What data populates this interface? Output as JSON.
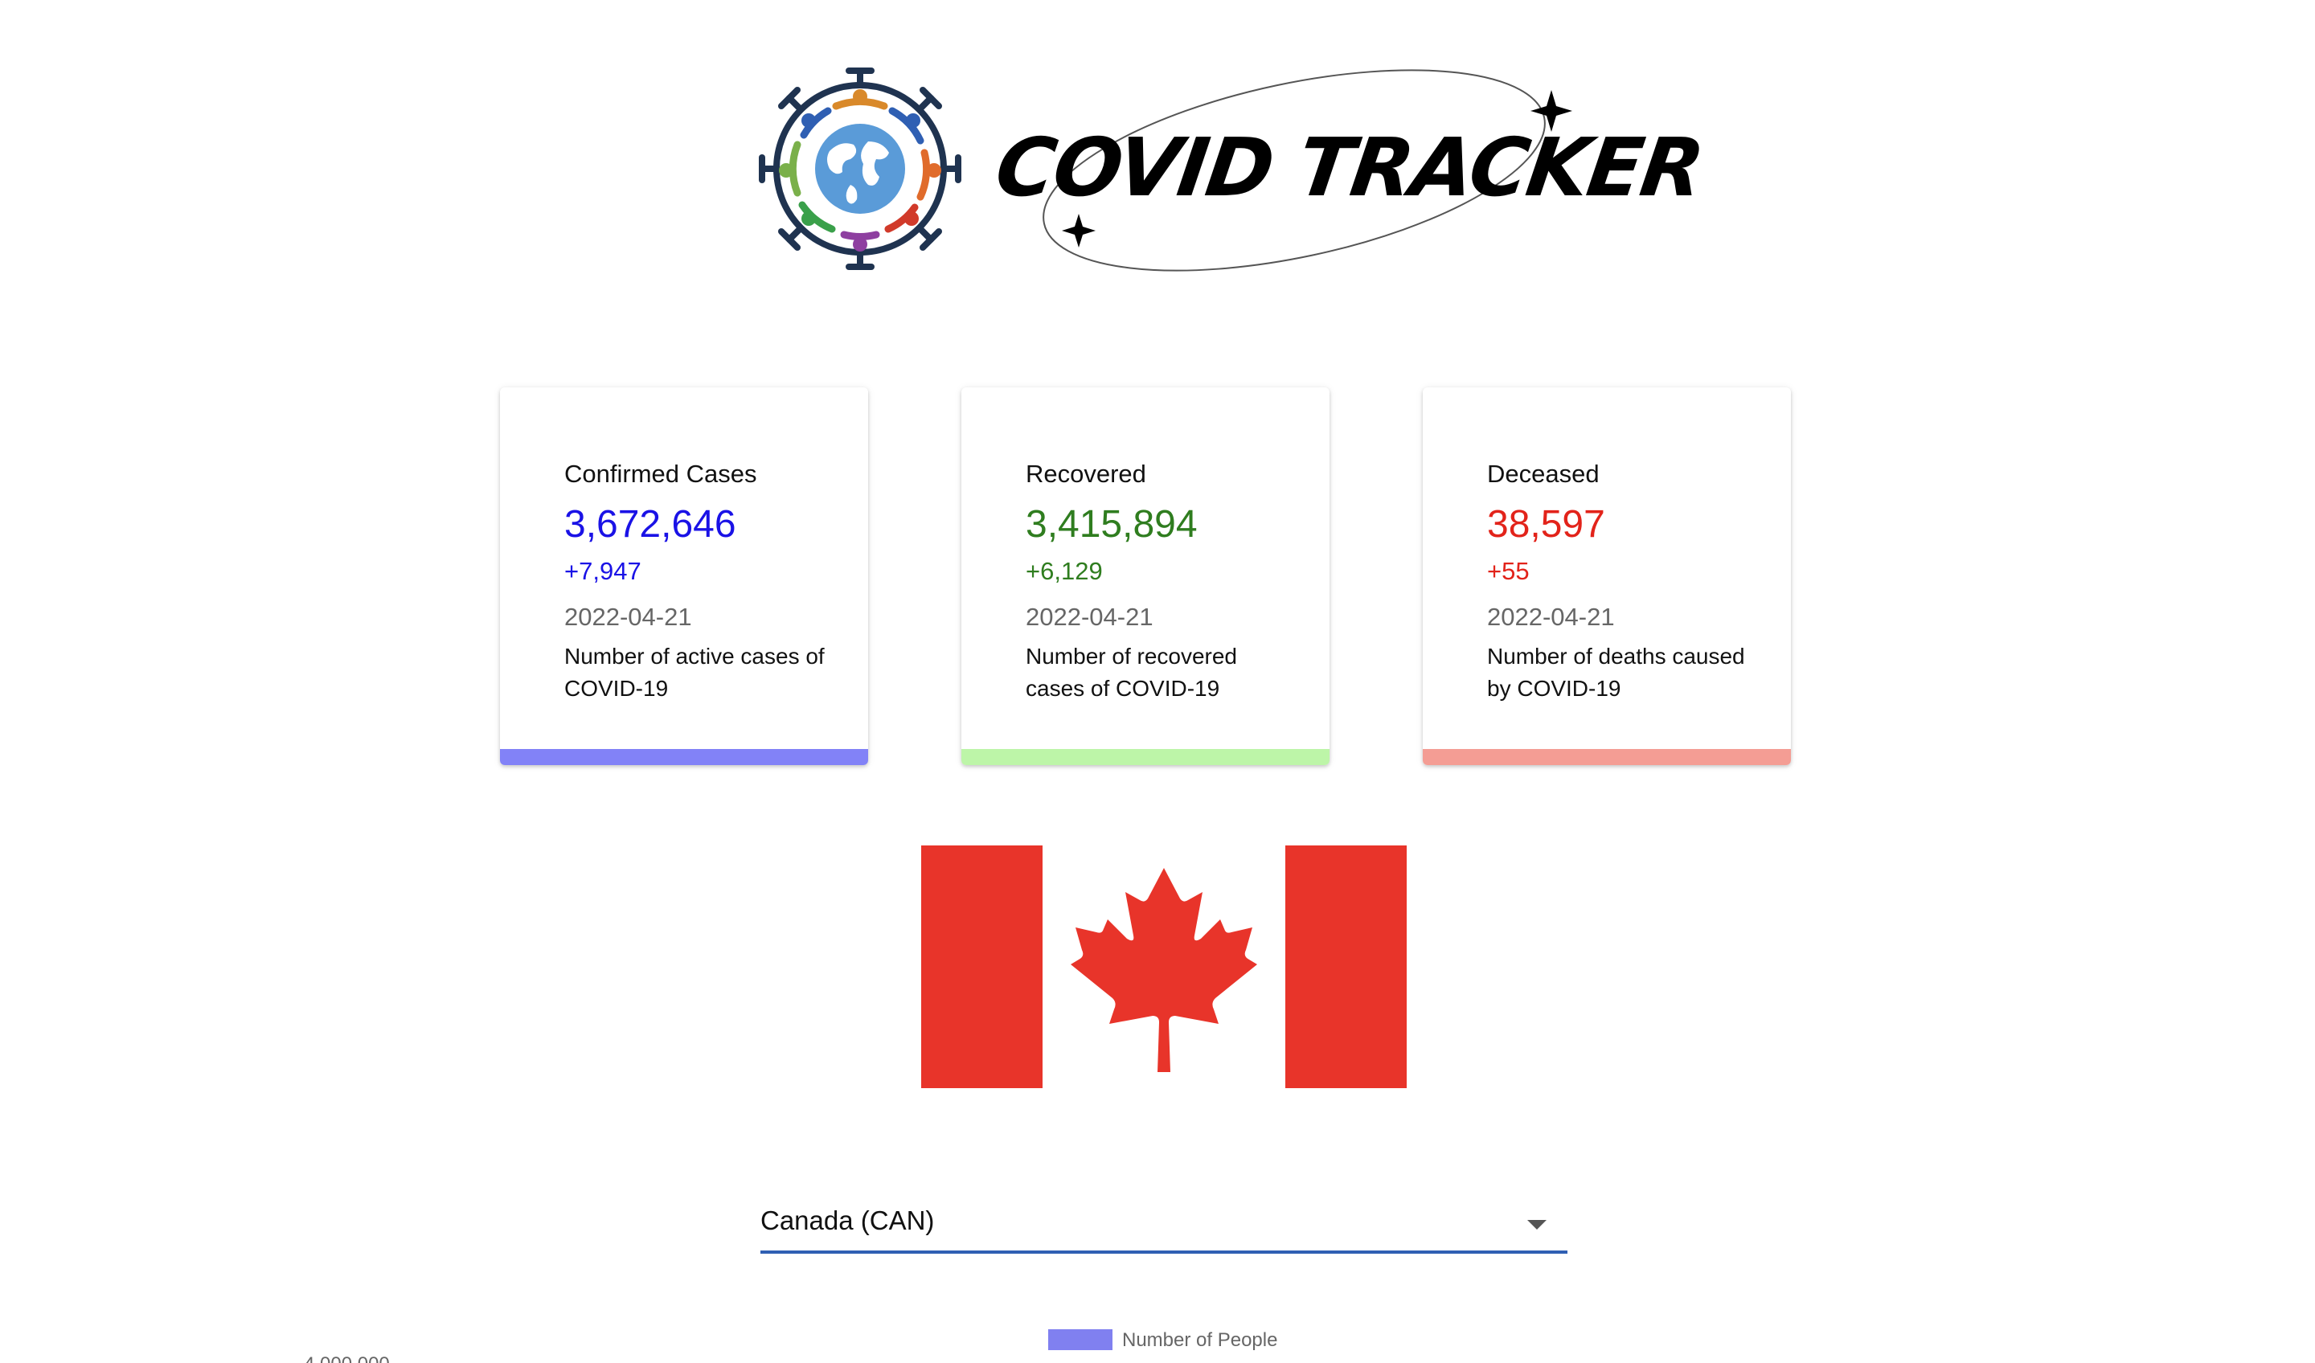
{
  "header": {
    "title": "COVID TRACKER",
    "logo_icon": "virus-globe-icon"
  },
  "cards": [
    {
      "label": "Confirmed Cases",
      "value": "3,672,646",
      "delta": "+7,947",
      "date": "2022-04-21",
      "description": "Number of active cases of COVID-19",
      "color": "#1a12e6",
      "bar_color": "#8282f7"
    },
    {
      "label": "Recovered",
      "value": "3,415,894",
      "delta": "+6,129",
      "date": "2022-04-21",
      "description": "Number of recovered cases of COVID-19",
      "color": "#2f7d1f",
      "bar_color": "#bdf5a8"
    },
    {
      "label": "Deceased",
      "value": "38,597",
      "delta": "+55",
      "date": "2022-04-21",
      "description": "Number of deaths caused by COVID-19",
      "color": "#e2231a",
      "bar_color": "#f49d94"
    }
  ],
  "flag": {
    "icon": "canada-flag-icon",
    "red": "#e8342a"
  },
  "country_select": {
    "value": "Canada (CAN)"
  },
  "chart_data": {
    "type": "bar",
    "title": "",
    "legend": [
      "Number of People"
    ],
    "series": [
      {
        "name": "Number of People",
        "color": "#8080f0",
        "values": []
      }
    ],
    "y_ticks": [
      "4,000,000"
    ]
  }
}
